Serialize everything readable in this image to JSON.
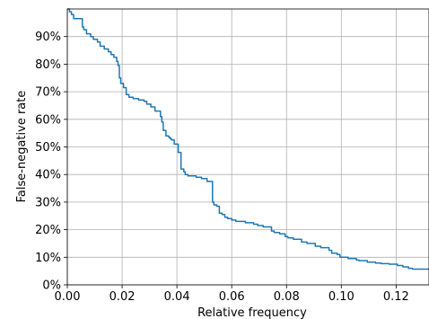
{
  "chart_data": {
    "type": "line",
    "title": "",
    "xlabel": "Relative frequency",
    "ylabel": "False-negative rate",
    "xlim": [
      0.0,
      0.132
    ],
    "ylim": [
      0.0,
      1.0
    ],
    "grid": true,
    "legend": "none",
    "line_color": "#1f77b4",
    "x_ticks": [
      {
        "value": 0.0,
        "label": "0.00"
      },
      {
        "value": 0.02,
        "label": "0.02"
      },
      {
        "value": 0.04,
        "label": "0.04"
      },
      {
        "value": 0.06,
        "label": "0.06"
      },
      {
        "value": 0.08,
        "label": "0.08"
      },
      {
        "value": 0.1,
        "label": "0.10"
      },
      {
        "value": 0.12,
        "label": "0.12"
      }
    ],
    "y_ticks": [
      {
        "value": 0.0,
        "label": "0%"
      },
      {
        "value": 0.1,
        "label": "10%"
      },
      {
        "value": 0.2,
        "label": "20%"
      },
      {
        "value": 0.3,
        "label": "30%"
      },
      {
        "value": 0.4,
        "label": "40%"
      },
      {
        "value": 0.5,
        "label": "50%"
      },
      {
        "value": 0.6,
        "label": "60%"
      },
      {
        "value": 0.7,
        "label": "70%"
      },
      {
        "value": 0.8,
        "label": "80%"
      },
      {
        "value": 0.9,
        "label": "90%"
      }
    ],
    "series": [
      {
        "x": [
          0.0,
          0.0008,
          0.0015,
          0.0023,
          0.003,
          0.0045,
          0.0055,
          0.006,
          0.007,
          0.0085,
          0.0095,
          0.011,
          0.012,
          0.0135,
          0.015,
          0.016,
          0.017,
          0.018,
          0.0185,
          0.019,
          0.0195,
          0.0205,
          0.0215,
          0.0225,
          0.024,
          0.026,
          0.028,
          0.029,
          0.0305,
          0.032,
          0.034,
          0.0345,
          0.035,
          0.036,
          0.037,
          0.0375,
          0.038,
          0.039,
          0.0405,
          0.0415,
          0.0425,
          0.043,
          0.044,
          0.045,
          0.047,
          0.049,
          0.051,
          0.052,
          0.053,
          0.0535,
          0.0545,
          0.0555,
          0.0565,
          0.0575,
          0.0585,
          0.06,
          0.0615,
          0.065,
          0.068,
          0.0695,
          0.0715,
          0.0745,
          0.0755,
          0.0775,
          0.0795,
          0.0805,
          0.0825,
          0.0855,
          0.0875,
          0.0905,
          0.0925,
          0.0955,
          0.0965,
          0.0985,
          0.0995,
          0.1025,
          0.1055,
          0.1065,
          0.1095,
          0.1125,
          0.1145,
          0.1175,
          0.1205,
          0.1225,
          0.1245,
          0.126,
          0.132
        ],
        "y": [
          1.0,
          0.99,
          0.98,
          0.965,
          0.965,
          0.965,
          0.935,
          0.925,
          0.91,
          0.9,
          0.89,
          0.88,
          0.865,
          0.855,
          0.845,
          0.835,
          0.825,
          0.81,
          0.795,
          0.75,
          0.73,
          0.715,
          0.69,
          0.68,
          0.675,
          0.67,
          0.665,
          0.655,
          0.645,
          0.63,
          0.61,
          0.59,
          0.56,
          0.54,
          0.535,
          0.53,
          0.525,
          0.51,
          0.48,
          0.42,
          0.41,
          0.4,
          0.395,
          0.395,
          0.39,
          0.385,
          0.375,
          0.375,
          0.3,
          0.29,
          0.285,
          0.26,
          0.255,
          0.245,
          0.24,
          0.235,
          0.23,
          0.225,
          0.22,
          0.215,
          0.21,
          0.195,
          0.19,
          0.185,
          0.175,
          0.17,
          0.165,
          0.155,
          0.15,
          0.14,
          0.135,
          0.125,
          0.115,
          0.11,
          0.1,
          0.095,
          0.09,
          0.088,
          0.082,
          0.079,
          0.077,
          0.075,
          0.07,
          0.065,
          0.06,
          0.057,
          0.055
        ]
      }
    ]
  }
}
